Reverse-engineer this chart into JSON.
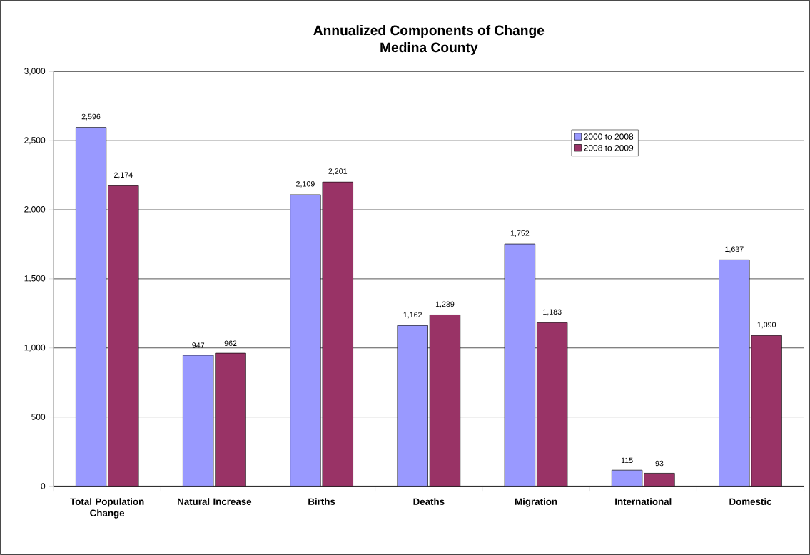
{
  "chart_data": {
    "type": "bar",
    "title": "Annualized Components of Change",
    "subtitle": "Medina County",
    "categories": [
      "Total Population Change",
      "Natural Increase",
      "Births",
      "Deaths",
      "Migration",
      "International",
      "Domestic"
    ],
    "series": [
      {
        "name": "2000 to 2008",
        "color": "#9999ff",
        "values": [
          2596,
          947,
          2109,
          1162,
          1752,
          115,
          1637
        ],
        "value_labels": [
          "2,596",
          "947",
          "2,109",
          "1,162",
          "1,752",
          "115",
          "1,637"
        ]
      },
      {
        "name": "2008 to 2009",
        "color": "#993366",
        "values": [
          2174,
          962,
          2201,
          1239,
          1183,
          93,
          1090
        ],
        "value_labels": [
          "2,174",
          "962",
          "2,201",
          "1,239",
          "1,183",
          "93",
          "1,090"
        ]
      }
    ],
    "ylim": [
      0,
      3000
    ],
    "yticks": [
      0,
      500,
      {
        "value": 1000,
        "label": "1,000"
      },
      {
        "value": 1500,
        "label": "1,500"
      },
      {
        "value": 2000,
        "label": "2,000"
      },
      {
        "value": 2500,
        "label": "2,500"
      },
      {
        "value": 3000,
        "label": "3,000"
      }
    ],
    "grid": "y",
    "legend": "top right"
  }
}
